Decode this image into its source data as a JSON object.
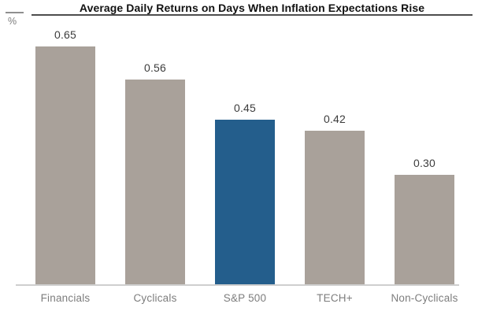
{
  "chart_data": {
    "type": "bar",
    "title": "Average Daily Returns on Days When Inflation Expectations Rise",
    "unit_label": "%",
    "categories": [
      "Financials",
      "Cyclicals",
      "S&P 500",
      "TECH+",
      "Non-Cyclicals"
    ],
    "values": [
      0.65,
      0.56,
      0.45,
      0.42,
      0.3
    ],
    "value_labels": [
      "0.65",
      "0.56",
      "0.45",
      "0.42",
      "0.30"
    ],
    "highlight_index": 2,
    "highlight_category": "S&P 500",
    "xlabel": "",
    "ylabel": "%",
    "ylim": [
      0,
      0.78
    ],
    "grid": false,
    "legend": "none",
    "y_axis_ticks": "none",
    "value_labels_position": "above-bars"
  },
  "colors": {
    "bar_default": "#a9a19a",
    "bar_highlight": "#245e8c",
    "title_text": "#121212",
    "title_rule": "#4d4d4d",
    "value_label": "#3c3c3c",
    "category_label": "#7d7d7d",
    "axis_line": "#cfcfcf",
    "background": "#ffffff"
  }
}
